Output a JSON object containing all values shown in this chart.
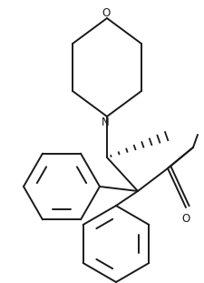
{
  "bg_color": "#ffffff",
  "line_color": "#1a1a1a",
  "line_width": 1.4,
  "figsize": [
    2.26,
    3.11
  ],
  "dpi": 100,
  "xlim": [
    0,
    226
  ],
  "ylim": [
    0,
    311
  ]
}
